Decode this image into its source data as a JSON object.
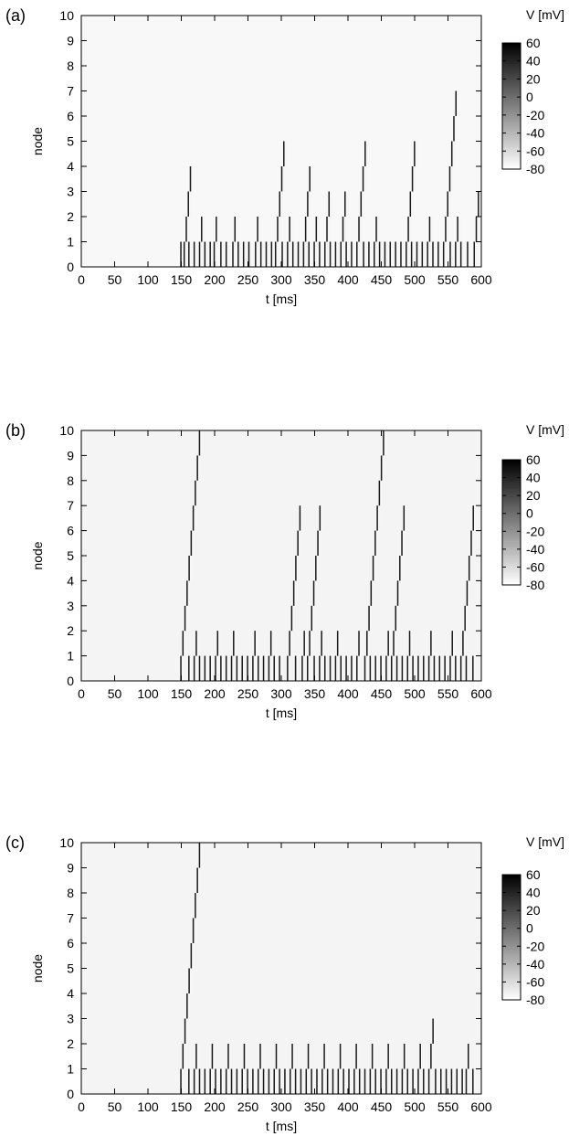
{
  "figure": {
    "panels": [
      {
        "label": "(a)",
        "xlabel": "t [ms]",
        "ylabel": "node",
        "colorbar_title": "V [mV]"
      },
      {
        "label": "(b)",
        "xlabel": "t [ms]",
        "ylabel": "node",
        "colorbar_title": "V [mV]"
      },
      {
        "label": "(c)",
        "xlabel": "t [ms]",
        "ylabel": "node",
        "colorbar_title": "V [mV]"
      }
    ]
  },
  "chart_data": [
    {
      "type": "heatmap",
      "title": "",
      "panel_label": "(a)",
      "xlabel": "t [ms]",
      "ylabel": "node",
      "xlim": [
        0,
        600
      ],
      "ylim": [
        0,
        10
      ],
      "x_ticks": [
        0,
        50,
        100,
        150,
        200,
        250,
        300,
        350,
        400,
        450,
        500,
        550,
        600
      ],
      "y_ticks": [
        0,
        1,
        2,
        3,
        4,
        5,
        6,
        7,
        8,
        9,
        10
      ],
      "colorbar": {
        "label": "V [mV]",
        "range": [
          -80,
          60
        ],
        "ticks": [
          60,
          40,
          20,
          0,
          -20,
          -40,
          -60,
          -80
        ],
        "low_color": "#ffffff",
        "high_color": "#000000"
      },
      "background_value_mV": -76,
      "grid": false,
      "spikes": [
        {
          "t": 150,
          "top": 1
        },
        {
          "t": 155,
          "top": 4
        },
        {
          "t": 162,
          "top": 1
        },
        {
          "t": 170,
          "top": 1
        },
        {
          "t": 178,
          "top": 2
        },
        {
          "t": 186,
          "top": 1
        },
        {
          "t": 194,
          "top": 1
        },
        {
          "t": 200,
          "top": 2
        },
        {
          "t": 210,
          "top": 1
        },
        {
          "t": 218,
          "top": 1
        },
        {
          "t": 228,
          "top": 2
        },
        {
          "t": 236,
          "top": 1
        },
        {
          "t": 244,
          "top": 1
        },
        {
          "t": 252,
          "top": 1
        },
        {
          "t": 262,
          "top": 2
        },
        {
          "t": 270,
          "top": 1
        },
        {
          "t": 278,
          "top": 1
        },
        {
          "t": 286,
          "top": 1
        },
        {
          "t": 292,
          "top": 5
        },
        {
          "t": 302,
          "top": 1
        },
        {
          "t": 310,
          "top": 2
        },
        {
          "t": 318,
          "top": 1
        },
        {
          "t": 326,
          "top": 1
        },
        {
          "t": 334,
          "top": 4
        },
        {
          "t": 342,
          "top": 1
        },
        {
          "t": 350,
          "top": 2
        },
        {
          "t": 358,
          "top": 1
        },
        {
          "t": 366,
          "top": 3
        },
        {
          "t": 374,
          "top": 1
        },
        {
          "t": 382,
          "top": 1
        },
        {
          "t": 390,
          "top": 3
        },
        {
          "t": 398,
          "top": 1
        },
        {
          "t": 406,
          "top": 1
        },
        {
          "t": 414,
          "top": 5
        },
        {
          "t": 424,
          "top": 1
        },
        {
          "t": 432,
          "top": 1
        },
        {
          "t": 440,
          "top": 2
        },
        {
          "t": 448,
          "top": 1
        },
        {
          "t": 456,
          "top": 1
        },
        {
          "t": 464,
          "top": 1
        },
        {
          "t": 472,
          "top": 1
        },
        {
          "t": 480,
          "top": 1
        },
        {
          "t": 488,
          "top": 5
        },
        {
          "t": 496,
          "top": 1
        },
        {
          "t": 504,
          "top": 1
        },
        {
          "t": 512,
          "top": 1
        },
        {
          "t": 520,
          "top": 2
        },
        {
          "t": 528,
          "top": 1
        },
        {
          "t": 536,
          "top": 1
        },
        {
          "t": 544,
          "top": 7
        },
        {
          "t": 554,
          "top": 1
        },
        {
          "t": 562,
          "top": 2
        },
        {
          "t": 570,
          "top": 1
        },
        {
          "t": 580,
          "top": 1
        },
        {
          "t": 590,
          "top": 3
        }
      ]
    },
    {
      "type": "heatmap",
      "title": "",
      "panel_label": "(b)",
      "xlabel": "t [ms]",
      "ylabel": "node",
      "xlim": [
        0,
        600
      ],
      "ylim": [
        0,
        10
      ],
      "x_ticks": [
        0,
        50,
        100,
        150,
        200,
        250,
        300,
        350,
        400,
        450,
        500,
        550,
        600
      ],
      "y_ticks": [
        0,
        1,
        2,
        3,
        4,
        5,
        6,
        7,
        8,
        9,
        10
      ],
      "colorbar": {
        "label": "V [mV]",
        "range": [
          -80,
          60
        ],
        "ticks": [
          60,
          40,
          20,
          0,
          -20,
          -40,
          -60,
          -80
        ],
        "low_color": "#ffffff",
        "high_color": "#000000"
      },
      "background_value_mV": -74,
      "grid": false,
      "spikes": [
        {
          "t": 150,
          "top": 10
        },
        {
          "t": 162,
          "top": 1
        },
        {
          "t": 170,
          "top": 2
        },
        {
          "t": 178,
          "top": 1
        },
        {
          "t": 186,
          "top": 1
        },
        {
          "t": 194,
          "top": 1
        },
        {
          "t": 202,
          "top": 2
        },
        {
          "t": 210,
          "top": 1
        },
        {
          "t": 218,
          "top": 1
        },
        {
          "t": 226,
          "top": 2
        },
        {
          "t": 234,
          "top": 1
        },
        {
          "t": 242,
          "top": 1
        },
        {
          "t": 250,
          "top": 1
        },
        {
          "t": 258,
          "top": 2
        },
        {
          "t": 266,
          "top": 1
        },
        {
          "t": 274,
          "top": 1
        },
        {
          "t": 282,
          "top": 2
        },
        {
          "t": 290,
          "top": 1
        },
        {
          "t": 298,
          "top": 1
        },
        {
          "t": 310,
          "top": 7
        },
        {
          "t": 322,
          "top": 1
        },
        {
          "t": 332,
          "top": 2
        },
        {
          "t": 340,
          "top": 7
        },
        {
          "t": 350,
          "top": 1
        },
        {
          "t": 358,
          "top": 2
        },
        {
          "t": 366,
          "top": 1
        },
        {
          "t": 374,
          "top": 1
        },
        {
          "t": 382,
          "top": 2
        },
        {
          "t": 390,
          "top": 1
        },
        {
          "t": 398,
          "top": 1
        },
        {
          "t": 406,
          "top": 1
        },
        {
          "t": 414,
          "top": 2
        },
        {
          "t": 426,
          "top": 10
        },
        {
          "t": 434,
          "top": 1
        },
        {
          "t": 442,
          "top": 1
        },
        {
          "t": 450,
          "top": 1
        },
        {
          "t": 458,
          "top": 2
        },
        {
          "t": 466,
          "top": 7
        },
        {
          "t": 474,
          "top": 1
        },
        {
          "t": 482,
          "top": 1
        },
        {
          "t": 490,
          "top": 2
        },
        {
          "t": 498,
          "top": 1
        },
        {
          "t": 506,
          "top": 1
        },
        {
          "t": 514,
          "top": 1
        },
        {
          "t": 522,
          "top": 2
        },
        {
          "t": 530,
          "top": 1
        },
        {
          "t": 538,
          "top": 1
        },
        {
          "t": 546,
          "top": 1
        },
        {
          "t": 554,
          "top": 2
        },
        {
          "t": 562,
          "top": 1
        },
        {
          "t": 570,
          "top": 7
        },
        {
          "t": 578,
          "top": 1
        },
        {
          "t": 588,
          "top": 1
        }
      ]
    },
    {
      "type": "heatmap",
      "title": "",
      "panel_label": "(c)",
      "xlabel": "t [ms]",
      "ylabel": "node",
      "xlim": [
        0,
        600
      ],
      "ylim": [
        0,
        10
      ],
      "x_ticks": [
        0,
        50,
        100,
        150,
        200,
        250,
        300,
        350,
        400,
        450,
        500,
        550,
        600
      ],
      "y_ticks": [
        0,
        1,
        2,
        3,
        4,
        5,
        6,
        7,
        8,
        9,
        10
      ],
      "colorbar": {
        "label": "V [mV]",
        "range": [
          -80,
          60
        ],
        "ticks": [
          60,
          40,
          20,
          0,
          -20,
          -40,
          -60,
          -80
        ],
        "low_color": "#ffffff",
        "high_color": "#000000"
      },
      "background_value_mV": -74,
      "grid": false,
      "spikes": [
        {
          "t": 150,
          "top": 10
        },
        {
          "t": 162,
          "top": 1
        },
        {
          "t": 170,
          "top": 2
        },
        {
          "t": 178,
          "top": 1
        },
        {
          "t": 186,
          "top": 1
        },
        {
          "t": 194,
          "top": 2
        },
        {
          "t": 202,
          "top": 1
        },
        {
          "t": 210,
          "top": 1
        },
        {
          "t": 218,
          "top": 2
        },
        {
          "t": 226,
          "top": 1
        },
        {
          "t": 234,
          "top": 1
        },
        {
          "t": 242,
          "top": 2
        },
        {
          "t": 250,
          "top": 1
        },
        {
          "t": 258,
          "top": 1
        },
        {
          "t": 266,
          "top": 2
        },
        {
          "t": 274,
          "top": 1
        },
        {
          "t": 282,
          "top": 1
        },
        {
          "t": 290,
          "top": 2
        },
        {
          "t": 298,
          "top": 1
        },
        {
          "t": 306,
          "top": 1
        },
        {
          "t": 314,
          "top": 2
        },
        {
          "t": 322,
          "top": 1
        },
        {
          "t": 330,
          "top": 1
        },
        {
          "t": 338,
          "top": 2
        },
        {
          "t": 346,
          "top": 1
        },
        {
          "t": 354,
          "top": 1
        },
        {
          "t": 362,
          "top": 2
        },
        {
          "t": 370,
          "top": 1
        },
        {
          "t": 378,
          "top": 1
        },
        {
          "t": 386,
          "top": 2
        },
        {
          "t": 394,
          "top": 1
        },
        {
          "t": 402,
          "top": 1
        },
        {
          "t": 410,
          "top": 2
        },
        {
          "t": 418,
          "top": 1
        },
        {
          "t": 426,
          "top": 1
        },
        {
          "t": 434,
          "top": 2
        },
        {
          "t": 442,
          "top": 1
        },
        {
          "t": 450,
          "top": 1
        },
        {
          "t": 458,
          "top": 2
        },
        {
          "t": 466,
          "top": 1
        },
        {
          "t": 474,
          "top": 1
        },
        {
          "t": 482,
          "top": 2
        },
        {
          "t": 490,
          "top": 1
        },
        {
          "t": 498,
          "top": 1
        },
        {
          "t": 506,
          "top": 2
        },
        {
          "t": 514,
          "top": 1
        },
        {
          "t": 522,
          "top": 3
        },
        {
          "t": 532,
          "top": 1
        },
        {
          "t": 540,
          "top": 1
        },
        {
          "t": 548,
          "top": 1
        },
        {
          "t": 556,
          "top": 1
        },
        {
          "t": 564,
          "top": 1
        },
        {
          "t": 572,
          "top": 1
        },
        {
          "t": 578,
          "top": 2
        },
        {
          "t": 588,
          "top": 1
        }
      ]
    }
  ]
}
